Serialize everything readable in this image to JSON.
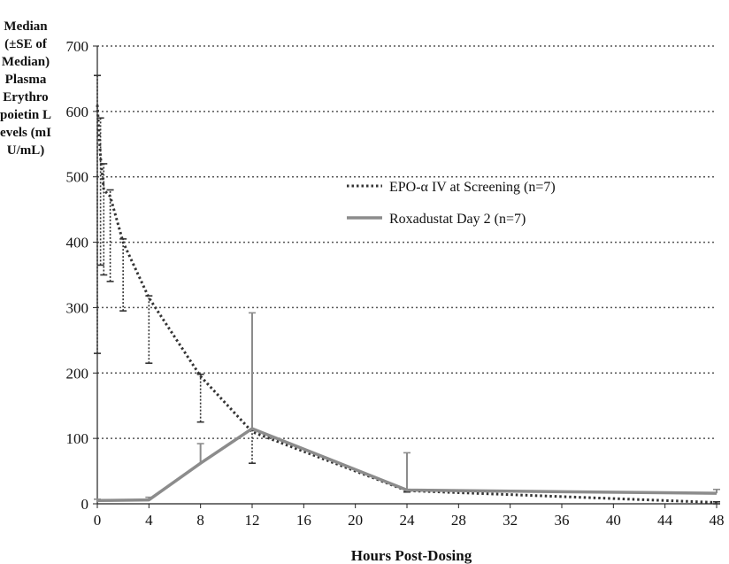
{
  "chart_data": {
    "type": "line",
    "title": "",
    "xlabel": "Hours Post-Dosing",
    "ylabel": "Median (±SE of Median) Plasma Erythropoietin Levels (mIU/mL)",
    "xlim": [
      0,
      48
    ],
    "ylim": [
      0,
      700
    ],
    "xticks": [
      0,
      4,
      8,
      12,
      16,
      20,
      24,
      28,
      32,
      36,
      40,
      44,
      48
    ],
    "yticks": [
      0,
      100,
      200,
      300,
      400,
      500,
      600,
      700
    ],
    "grid": "horizontal-dotted",
    "legend": "right-upper",
    "series": [
      {
        "name": "EPO-α IV at Screening (n=7)",
        "style": "dotted",
        "color": "#333333",
        "x": [
          0,
          0.25,
          0.5,
          1,
          2,
          4,
          8,
          12,
          24,
          48
        ],
        "y": [
          610,
          530,
          480,
          470,
          400,
          315,
          195,
          110,
          20,
          2
        ],
        "se_low": [
          230,
          365,
          350,
          340,
          295,
          215,
          125,
          62,
          18,
          0
        ],
        "se_high": [
          655,
          590,
          520,
          480,
          405,
          318,
          198,
          112,
          22,
          3
        ]
      },
      {
        "name": "Roxadustat Day 2 (n=7)",
        "style": "solid",
        "color": "#8c8c8c",
        "x": [
          0,
          4,
          8,
          12,
          24,
          48
        ],
        "y": [
          5,
          6,
          62,
          115,
          21,
          16
        ],
        "se_low": [
          5,
          6,
          62,
          115,
          21,
          16
        ],
        "se_high": [
          7,
          10,
          92,
          292,
          78,
          22
        ]
      }
    ]
  }
}
